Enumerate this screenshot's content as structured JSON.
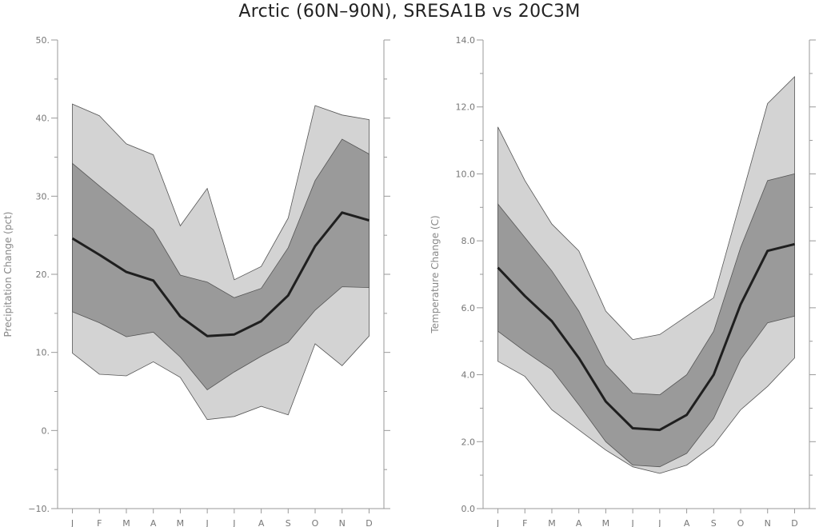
{
  "title": "Arctic (60N–90N), SRESA1B vs 20C3M",
  "colors": {
    "outer_band": "#d3d3d3",
    "inner_band": "#9a9a9a",
    "median_line": "#1f1f1f",
    "axis": "#999999",
    "band_edge": "#555555"
  },
  "chart_data": [
    {
      "type": "area",
      "ylabel": "Precipitation Change (pct)",
      "xlabel": "",
      "categories": [
        "J",
        "F",
        "M",
        "A",
        "M",
        "J",
        "J",
        "A",
        "S",
        "O",
        "N",
        "D"
      ],
      "ylim": [
        -10,
        50
      ],
      "yticks": [
        -10,
        0,
        10,
        20,
        30,
        40,
        50
      ],
      "ytick_labels": [
        "−10.",
        "0.",
        "10.",
        "20.",
        "30.",
        "40.",
        "50."
      ],
      "grid": false,
      "series": [
        {
          "role": "outer_high",
          "values": [
            41.8,
            40.3,
            36.7,
            35.3,
            26.2,
            31.0,
            19.3,
            21.0,
            27.2,
            41.6,
            40.4,
            39.8
          ]
        },
        {
          "role": "inner_high",
          "values": [
            34.2,
            31.3,
            28.5,
            25.7,
            19.9,
            19.0,
            17.0,
            18.2,
            23.4,
            32.0,
            37.3,
            35.4
          ]
        },
        {
          "role": "median",
          "values": [
            24.6,
            22.5,
            20.3,
            19.2,
            14.6,
            12.1,
            12.3,
            14.0,
            17.3,
            23.6,
            27.9,
            26.9
          ]
        },
        {
          "role": "inner_low",
          "values": [
            15.2,
            13.8,
            12.0,
            12.6,
            9.4,
            5.2,
            7.5,
            9.5,
            11.3,
            15.4,
            18.4,
            18.3
          ]
        },
        {
          "role": "outer_low",
          "values": [
            9.9,
            7.2,
            7.0,
            8.8,
            6.8,
            1.4,
            1.8,
            3.1,
            2.0,
            11.1,
            8.3,
            12.1
          ]
        }
      ]
    },
    {
      "type": "area",
      "ylabel": "Temperature Change (C)",
      "xlabel": "",
      "categories": [
        "J",
        "F",
        "M",
        "A",
        "M",
        "J",
        "J",
        "A",
        "S",
        "O",
        "N",
        "D"
      ],
      "ylim": [
        0,
        14
      ],
      "yticks": [
        0,
        2,
        4,
        6,
        8,
        10,
        12,
        14
      ],
      "ytick_labels": [
        "0.0",
        "2.0",
        "4.0",
        "6.0",
        "8.0",
        "10.0",
        "12.0",
        "14.0"
      ],
      "grid": false,
      "series": [
        {
          "role": "outer_high",
          "values": [
            11.4,
            9.8,
            8.5,
            7.7,
            5.9,
            5.05,
            5.2,
            5.75,
            6.3,
            9.2,
            12.1,
            12.9
          ]
        },
        {
          "role": "inner_high",
          "values": [
            9.1,
            8.1,
            7.1,
            5.9,
            4.3,
            3.45,
            3.4,
            4.0,
            5.3,
            7.8,
            9.8,
            10.0
          ]
        },
        {
          "role": "median",
          "values": [
            7.2,
            6.35,
            5.6,
            4.5,
            3.2,
            2.4,
            2.35,
            2.8,
            4.0,
            6.1,
            7.7,
            7.9
          ]
        },
        {
          "role": "inner_low",
          "values": [
            5.3,
            4.7,
            4.15,
            3.1,
            2.0,
            1.3,
            1.25,
            1.65,
            2.7,
            4.45,
            5.55,
            5.75
          ]
        },
        {
          "role": "outer_low",
          "values": [
            4.4,
            3.95,
            2.95,
            2.35,
            1.75,
            1.25,
            1.05,
            1.3,
            1.9,
            2.95,
            3.65,
            4.5
          ]
        }
      ]
    }
  ]
}
